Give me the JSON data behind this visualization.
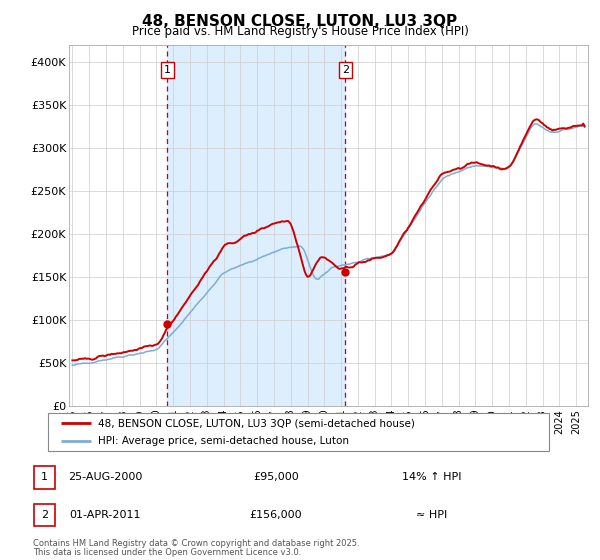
{
  "title": "48, BENSON CLOSE, LUTON, LU3 3QP",
  "subtitle": "Price paid vs. HM Land Registry's House Price Index (HPI)",
  "ylim": [
    0,
    420000
  ],
  "yticks": [
    0,
    50000,
    100000,
    150000,
    200000,
    250000,
    300000,
    350000,
    400000
  ],
  "ytick_labels": [
    "£0",
    "£50K",
    "£100K",
    "£150K",
    "£200K",
    "£250K",
    "£300K",
    "£350K",
    "£400K"
  ],
  "plot_bg": "#ffffff",
  "grid_color": "#cccccc",
  "hpi_color": "#7eadd4",
  "price_color": "#cc0000",
  "shade_color": "#ddeeff",
  "transaction1_date": 2000.65,
  "transaction1_price": 95000,
  "transaction2_date": 2011.25,
  "transaction2_price": 156000,
  "legend_line1": "48, BENSON CLOSE, LUTON, LU3 3QP (semi-detached house)",
  "legend_line2": "HPI: Average price, semi-detached house, Luton",
  "footer_line1": "Contains HM Land Registry data © Crown copyright and database right 2025.",
  "footer_line2": "This data is licensed under the Open Government Licence v3.0.",
  "table_row1_num": "1",
  "table_row1_date": "25-AUG-2000",
  "table_row1_price": "£95,000",
  "table_row1_hpi": "14% ↑ HPI",
  "table_row2_num": "2",
  "table_row2_date": "01-APR-2011",
  "table_row2_price": "£156,000",
  "table_row2_hpi": "≈ HPI"
}
